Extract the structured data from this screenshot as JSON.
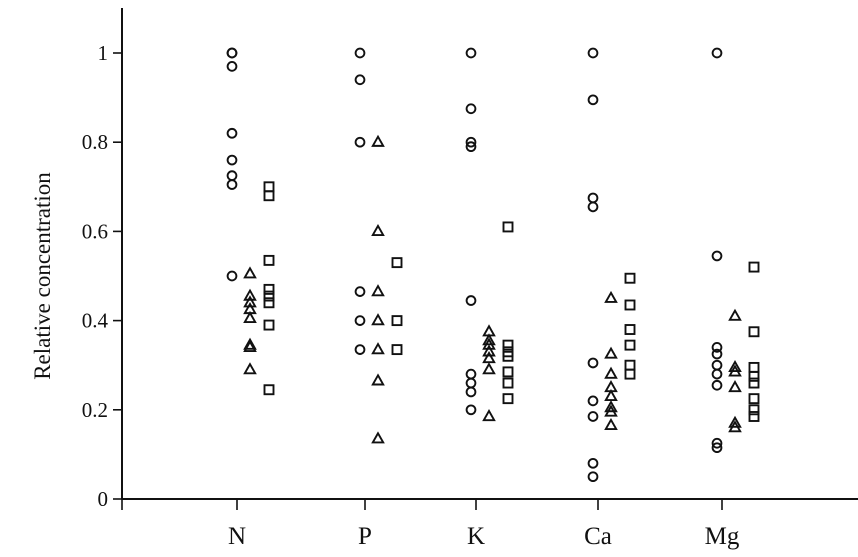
{
  "chart_data": {
    "type": "scatter",
    "title": "",
    "xlabel": "",
    "ylabel": "Relative concentration",
    "categories": [
      "N",
      "P",
      "K",
      "Ca",
      "Mg"
    ],
    "ylim": [
      0,
      1.1
    ],
    "yticks": [
      0,
      0.2,
      0.4,
      0.6,
      0.8,
      1
    ],
    "ytick_labels": [
      "0",
      "0.2",
      "0.4",
      "0.6",
      "0.8",
      "1"
    ],
    "grid": false,
    "legend": "none",
    "series": [
      {
        "marker": "circle",
        "points": {
          "N": [
            1.0,
            1.0,
            0.97,
            0.82,
            0.76,
            0.725,
            0.705,
            0.5
          ],
          "P": [
            1.0,
            0.94,
            0.8,
            0.465,
            0.4,
            0.335
          ],
          "K": [
            1.0,
            0.875,
            0.8,
            0.79,
            0.445,
            0.28,
            0.26,
            0.24,
            0.2
          ],
          "Ca": [
            1.0,
            0.895,
            0.675,
            0.655,
            0.305,
            0.22,
            0.185,
            0.08,
            0.05
          ],
          "Mg": [
            1.0,
            0.545,
            0.34,
            0.325,
            0.3,
            0.28,
            0.255,
            0.125,
            0.115
          ]
        }
      },
      {
        "marker": "triangle",
        "points": {
          "N": [
            0.505,
            0.455,
            0.44,
            0.425,
            0.405,
            0.345,
            0.34,
            0.29
          ],
          "P": [
            0.8,
            0.6,
            0.465,
            0.4,
            0.335,
            0.265,
            0.135
          ],
          "K": [
            0.375,
            0.355,
            0.345,
            0.33,
            0.315,
            0.29,
            0.185
          ],
          "Ca": [
            0.45,
            0.325,
            0.28,
            0.25,
            0.23,
            0.205,
            0.195,
            0.165
          ],
          "Mg": [
            0.41,
            0.295,
            0.285,
            0.25,
            0.17,
            0.16
          ]
        }
      },
      {
        "marker": "square",
        "points": {
          "N": [
            0.7,
            0.68,
            0.535,
            0.47,
            0.455,
            0.44,
            0.39,
            0.245
          ],
          "P": [
            0.53,
            0.4,
            0.335
          ],
          "K": [
            0.61,
            0.345,
            0.33,
            0.32,
            0.285,
            0.26,
            0.225
          ],
          "Ca": [
            0.495,
            0.435,
            0.38,
            0.345,
            0.3,
            0.28
          ],
          "Mg": [
            0.52,
            0.375,
            0.295,
            0.275,
            0.26,
            0.225,
            0.2,
            0.185
          ]
        }
      }
    ]
  }
}
